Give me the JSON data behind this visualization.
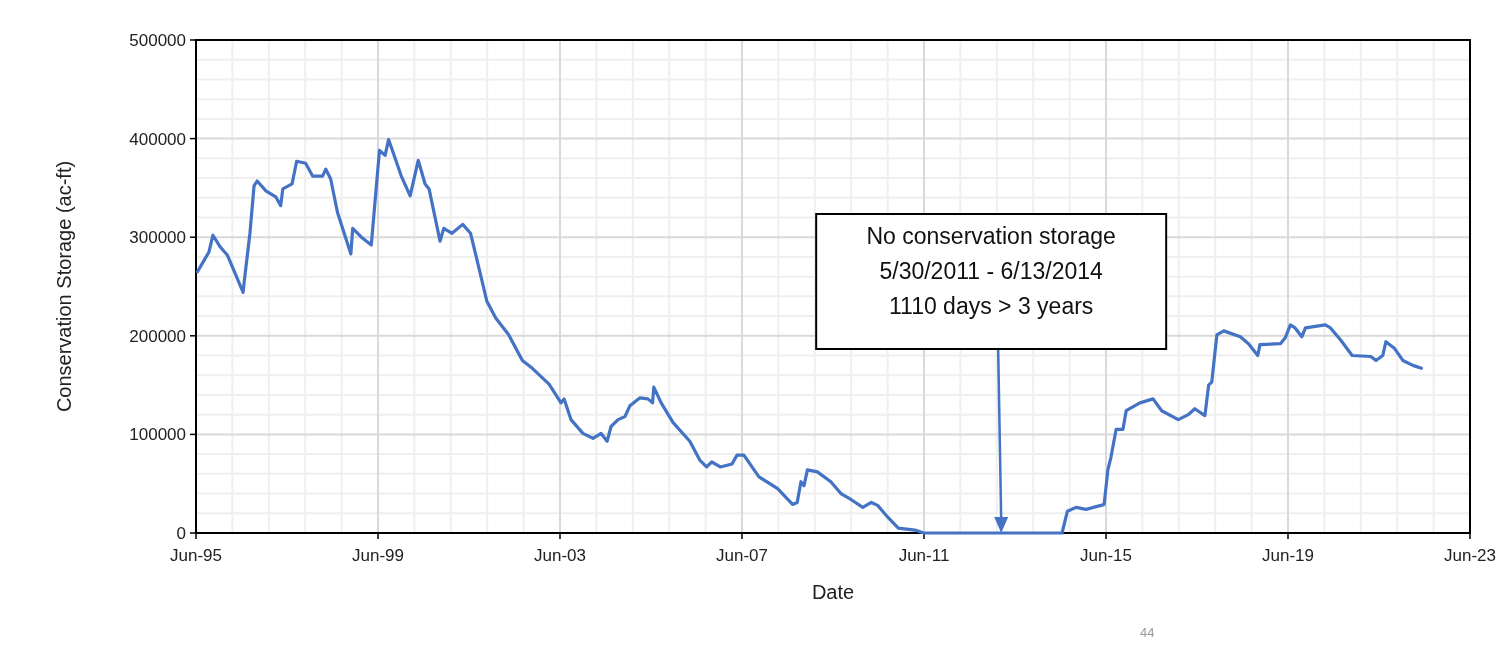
{
  "chart_data": {
    "type": "line",
    "xlabel": "Date",
    "ylabel": "Conservation Storage (ac-ft)",
    "xlim": [
      "1995-06-01",
      "2023-06-01"
    ],
    "xticks": [
      {
        "value": "1995-06-01",
        "label": "Jun-95"
      },
      {
        "value": "1999-06-01",
        "label": "Jun-99"
      },
      {
        "value": "2003-06-01",
        "label": "Jun-03"
      },
      {
        "value": "2007-06-01",
        "label": "Jun-07"
      },
      {
        "value": "2011-06-01",
        "label": "Jun-11"
      },
      {
        "value": "2015-06-01",
        "label": "Jun-15"
      },
      {
        "value": "2019-06-01",
        "label": "Jun-19"
      },
      {
        "value": "2023-06-01",
        "label": "Jun-23"
      }
    ],
    "ylim": [
      0,
      500000
    ],
    "yticks": [
      0,
      100000,
      200000,
      300000,
      400000,
      500000
    ],
    "grid": true,
    "annotations": [
      "No conservation storage\n5/30/2011 - 6/13/2014\n1110 days > 3 years",
      "44"
    ],
    "series": [
      {
        "color": "#4472c4",
        "x": [
          "1995-06-13",
          "1995-08-07",
          "1995-09-13",
          "1995-10-15",
          "1995-12-13",
          "1996-02-07",
          "1996-04-11",
          "1996-06-13",
          "1996-06-23",
          "1996-08-07",
          "1996-09-09",
          "1996-10-04",
          "1996-12-13",
          "1997-03-02",
          "1997-04-11",
          "1997-04-28",
          "1997-07-11",
          "1997-08-17",
          "1997-10-28",
          "1997-12-23",
          "1998-03-13",
          "1998-04-08",
          "1998-05-17",
          "1998-07-11",
          "1998-10-26",
          "1998-11-10",
          "1999-01-19",
          "1999-04-08",
          "1999-05-17",
          "1999-06-13",
          "1999-07-28",
          "1999-08-25",
          "1999-12-05",
          "2000-02-14",
          "2000-04-19",
          "2000-06-13",
          "2000-07-15",
          "2000-10-11",
          "2000-11-10",
          "2001-01-15",
          "2001-04-11",
          "2001-06-13",
          "2001-08-17",
          "2001-10-22",
          "2002-01-01",
          "2002-04-15",
          "2002-08-03",
          "2002-10-22",
          "2003-03-05",
          "2003-06-09",
          "2003-07-04",
          "2003-08-28",
          "2003-12-02",
          "2004-02-21",
          "2004-04-26",
          "2004-06-13",
          "2004-07-15",
          "2004-09-09",
          "2004-11-03",
          "2004-12-13",
          "2005-03-02",
          "2005-05-07",
          "2005-06-13",
          "2005-06-23",
          "2005-08-21",
          "2005-11-25",
          "2006-04-08",
          "2006-06-27",
          "2006-08-21",
          "2006-10-01",
          "2006-12-09",
          "2007-03-13",
          "2007-04-22",
          "2007-06-16",
          "2007-10-15",
          "2008-03-13",
          "2008-07-11",
          "2008-08-17",
          "2008-09-16",
          "2008-10-11",
          "2008-11-07",
          "2009-01-26",
          "2009-05-14",
          "2009-08-03",
          "2009-10-22",
          "2010-01-26",
          "2010-04-04",
          "2010-05-25",
          "2010-08-14",
          "2010-11-07",
          "2011-03-20",
          "2011-05-30",
          "2014-06-13",
          "2014-07-26",
          "2014-10-04",
          "2014-12-23",
          "2015-04-22",
          "2015-05-17",
          "2015-06-16",
          "2015-07-11",
          "2015-08-21",
          "2015-10-15",
          "2015-11-10",
          "2016-02-28",
          "2016-06-13",
          "2016-08-21",
          "2017-01-01",
          "2017-03-23",
          "2017-05-14",
          "2017-08-03",
          "2017-09-02",
          "2017-09-27",
          "2017-11-07",
          "2018-01-01",
          "2018-05-14",
          "2018-07-19",
          "2018-10-01",
          "2018-10-19",
          "2019-04-01",
          "2019-05-10",
          "2019-06-20",
          "2019-07-28",
          "2019-09-20",
          "2019-10-19",
          "2020-03-27",
          "2020-05-07",
          "2020-07-26",
          "2020-10-28",
          "2021-03-27",
          "2021-05-07",
          "2021-07-01",
          "2021-07-26",
          "2021-10-04",
          "2021-12-09",
          "2022-02-28",
          "2022-05-07"
        ],
        "values": [
          265000,
          277000,
          285000,
          302000,
          290000,
          282000,
          263000,
          244000,
          256000,
          304000,
          352000,
          357000,
          347000,
          341000,
          332000,
          349000,
          354000,
          377000,
          375000,
          362000,
          362000,
          369000,
          359000,
          325000,
          283000,
          309000,
          300000,
          292000,
          349000,
          388000,
          383000,
          399000,
          362000,
          342000,
          378000,
          354000,
          349000,
          296000,
          309000,
          304000,
          313000,
          304000,
          270000,
          235000,
          218000,
          201000,
          175000,
          167000,
          151000,
          132000,
          136000,
          115000,
          101000,
          96000,
          101000,
          93000,
          108000,
          115000,
          118000,
          129000,
          137000,
          136000,
          132000,
          148000,
          132000,
          112000,
          93000,
          74000,
          67000,
          72000,
          67000,
          70000,
          79000,
          79000,
          57000,
          45000,
          29000,
          31000,
          52000,
          48000,
          64000,
          62000,
          52000,
          40000,
          34000,
          26000,
          31000,
          28000,
          16000,
          5000,
          3000,
          0,
          0,
          22000,
          26000,
          24000,
          28000,
          29000,
          64000,
          77000,
          105000,
          105000,
          124000,
          132000,
          136000,
          124000,
          115000,
          120000,
          126000,
          119000,
          150000,
          153000,
          201000,
          205000,
          199000,
          192000,
          180000,
          191000,
          192000,
          198000,
          211000,
          208000,
          199000,
          208000,
          211000,
          208000,
          196000,
          180000,
          179000,
          175000,
          180000,
          194000,
          187000,
          175000,
          170000,
          167000
        ]
      }
    ]
  }
}
